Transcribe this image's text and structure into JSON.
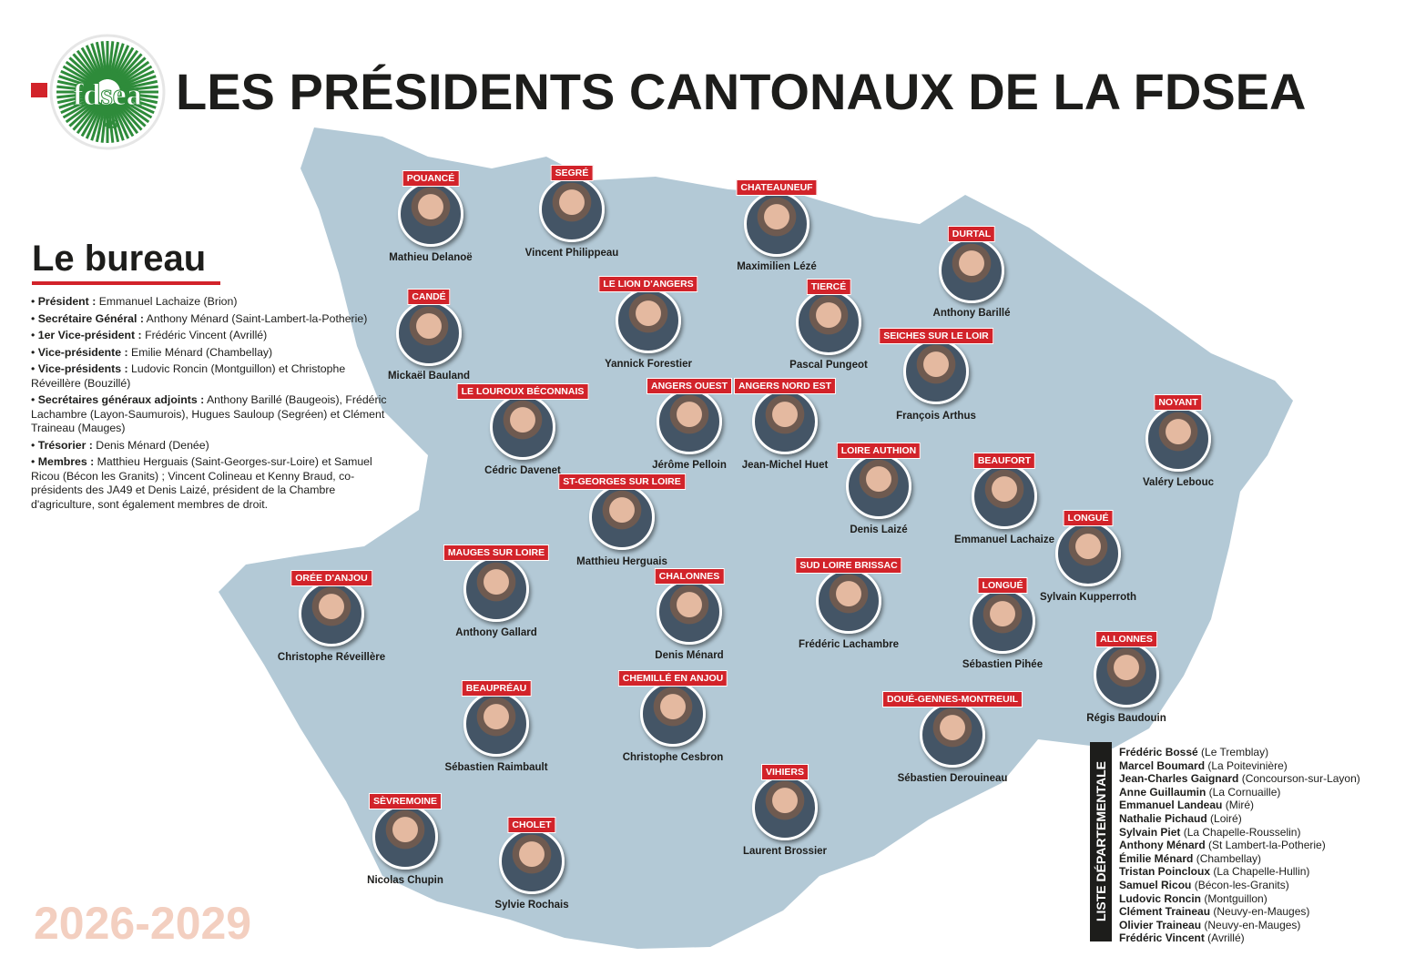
{
  "header": {
    "title": "LES PRÉSIDENTS CANTONAUX DE LA FDSEA",
    "logo_text": "fdsea",
    "logo_number": "49"
  },
  "bureau": {
    "title": "Le bureau",
    "items": [
      {
        "role": "Président :",
        "text": " Emmanuel Lachaize (Brion)"
      },
      {
        "role": "Secrétaire Général :",
        "text": " Anthony Ménard (Saint-Lambert-la-Potherie)"
      },
      {
        "role": "1er Vice-président :",
        "text": " Frédéric Vincent (Avrillé)"
      },
      {
        "role": "Vice-présidente :",
        "text": " Emilie Ménard (Chambellay)"
      },
      {
        "role": "Vice-présidents :",
        "text": " Ludovic Roncin (Montguillon) et Christophe Réveillère (Bouzillé)"
      },
      {
        "role": "Secrétaires généraux adjoints :",
        "text": " Anthony Barillé (Baugeois), Frédéric Lachambre (Layon-Saumurois), Hugues Sauloup (Segréen) et Clément Traineau (Mauges)"
      },
      {
        "role": "Trésorier :",
        "text": " Denis Ménard (Denée)"
      },
      {
        "role": "Membres :",
        "text": " Matthieu Herguais (Saint-Georges-sur-Loire) et Samuel Ricou (Bécon les Granits) ; Vincent Colineau et Kenny Braud, co-présidents des JA49 et Denis Laizé, président de la Chambre d'agriculture, sont également membres de droit."
      }
    ]
  },
  "years": "2026-2029",
  "presidents": [
    {
      "canton": "POUANCÉ",
      "name": "Mathieu Delanoë"
    },
    {
      "canton": "SEGRÉ",
      "name": "Vincent Philippeau"
    },
    {
      "canton": "CHATEAUNEUF",
      "name": "Maximilien Lézé"
    },
    {
      "canton": "DURTAL",
      "name": "Anthony Barillé"
    },
    {
      "canton": "CANDÉ",
      "name": "Mickaël Bauland"
    },
    {
      "canton": "LE LION D'ANGERS",
      "name": "Yannick Forestier"
    },
    {
      "canton": "TIERCÉ",
      "name": "Pascal Pungeot"
    },
    {
      "canton": "SEICHES SUR LE LOIR",
      "name": "François Arthus"
    },
    {
      "canton": "NOYANT",
      "name": "Valéry Lebouc"
    },
    {
      "canton": "LE LOUROUX BÉCONNAIS",
      "name": "Cédric Davenet"
    },
    {
      "canton": "ANGERS OUEST",
      "name": "Jérôme Pelloin"
    },
    {
      "canton": "ANGERS NORD EST",
      "name": "Jean-Michel Huet"
    },
    {
      "canton": "LOIRE AUTHION",
      "name": "Denis Laizé"
    },
    {
      "canton": "BEAUFORT",
      "name": "Emmanuel Lachaize"
    },
    {
      "canton": "ST-GEORGES SUR LOIRE",
      "name": "Matthieu Herguais"
    },
    {
      "canton": "LONGUÉ",
      "name": "Sylvain Kupperroth"
    },
    {
      "canton": "MAUGES SUR LOIRE",
      "name": "Anthony Gallard"
    },
    {
      "canton": "ORÉE D'ANJOU",
      "name": "Christophe Réveillère"
    },
    {
      "canton": "CHALONNES",
      "name": "Denis Ménard"
    },
    {
      "canton": "SUD LOIRE BRISSAC",
      "name": "Frédéric Lachambre"
    },
    {
      "canton": "LONGUÉ",
      "name": "Sébastien Pihée"
    },
    {
      "canton": "ALLONNES",
      "name": "Régis Baudouin"
    },
    {
      "canton": "BEAUPRÉAU",
      "name": "Sébastien Raimbault"
    },
    {
      "canton": "CHEMILLÉ EN ANJOU",
      "name": "Christophe Cesbron"
    },
    {
      "canton": "DOUÉ-GENNES-MONTREUIL",
      "name": "Sébastien Derouineau"
    },
    {
      "canton": "VIHIERS",
      "name": "Laurent Brossier"
    },
    {
      "canton": "SÈVREMOINE",
      "name": "Nicolas Chupin"
    },
    {
      "canton": "CHOLET",
      "name": "Sylvie Rochais"
    }
  ],
  "liste": {
    "title": "LISTE DÉPARTEMENTALE",
    "members": [
      {
        "name": "Frédéric Bossé",
        "place": " (Le Tremblay)"
      },
      {
        "name": "Marcel Boumard",
        "place": " (La Poitevinière)"
      },
      {
        "name": "Jean-Charles Gaignard",
        "place": " (Concourson-sur-Layon)"
      },
      {
        "name": "Anne Guillaumin",
        "place": " (La Cornuaille)"
      },
      {
        "name": "Emmanuel Landeau",
        "place": " (Miré)"
      },
      {
        "name": "Nathalie Pichaud",
        "place": " (Loiré)"
      },
      {
        "name": "Sylvain Piet",
        "place": " (La Chapelle-Rousselin)"
      },
      {
        "name": "Anthony Ménard",
        "place": " (St Lambert-la-Potherie)"
      },
      {
        "name": "Émilie Ménard",
        "place": " (Chambellay)"
      },
      {
        "name": "Tristan Poincloux",
        "place": " (La Chapelle-Hullin)"
      },
      {
        "name": "Samuel Ricou",
        "place": " (Bécon-les-Granits)"
      },
      {
        "name": "Ludovic Roncin",
        "place": " (Montguillon)"
      },
      {
        "name": "Clément Traineau",
        "place": " (Neuvy-en-Mauges)"
      },
      {
        "name": "Olivier Traineau",
        "place": " (Neuvy-en-Mauges)"
      },
      {
        "name": "Frédéric Vincent",
        "place": " (Avrillé)"
      }
    ]
  },
  "colors": {
    "red": "#d2232a",
    "map": "#b3c9d6",
    "green": "#2e8b3a"
  }
}
